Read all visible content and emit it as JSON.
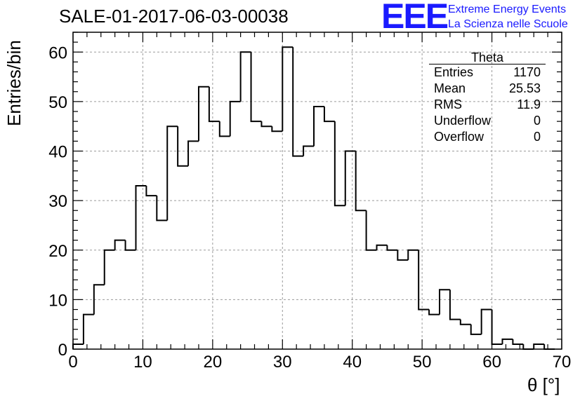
{
  "header": {
    "title": "SALE-01-2017-06-03-00038",
    "logo": "EEE",
    "logo_line1": "Extreme Energy Events",
    "logo_line2": "La Scienza nelle Scuole"
  },
  "stats_box": {
    "title": "Theta",
    "rows": [
      {
        "label": "Entries",
        "value": "1170"
      },
      {
        "label": "Mean",
        "value": "25.53"
      },
      {
        "label": "RMS",
        "value": "11.9"
      },
      {
        "label": "Underflow",
        "value": "0"
      },
      {
        "label": "Overflow",
        "value": "0"
      }
    ]
  },
  "chart_data": {
    "type": "bar",
    "histogram": true,
    "xlabel": "θ [°]",
    "ylabel": "Entries/bin",
    "xlim": [
      0,
      70
    ],
    "ylim": [
      0,
      64
    ],
    "bin_width": 1.5,
    "bin_start": 0,
    "values": [
      1,
      7,
      13,
      20,
      22,
      20,
      33,
      31,
      26,
      45,
      37,
      42,
      53,
      46,
      43,
      50,
      60,
      46,
      45,
      44,
      61,
      39,
      41,
      49,
      46,
      29,
      40,
      28,
      20,
      21,
      20,
      18,
      20,
      8,
      7,
      12,
      6,
      5,
      3,
      8,
      1,
      2,
      1,
      0,
      1,
      0,
      0
    ],
    "xticks": [
      0,
      10,
      20,
      30,
      40,
      50,
      60,
      70
    ],
    "yticks": [
      0,
      10,
      20,
      30,
      40,
      50,
      60
    ],
    "grid": true,
    "line_color": "#000000",
    "grid_color": "#9a9a9a"
  }
}
